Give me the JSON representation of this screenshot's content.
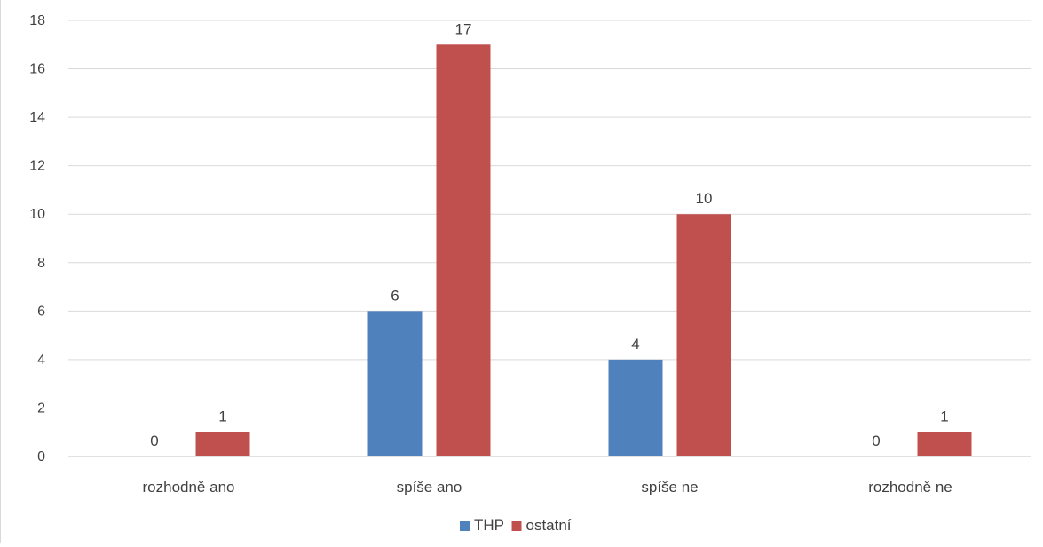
{
  "chart_data": {
    "type": "bar",
    "categories": [
      "rozhodně ano",
      "spíše ano",
      "spíše ne",
      "rozhodně ne"
    ],
    "series": [
      {
        "name": "THP",
        "values": [
          0,
          6,
          4,
          0
        ],
        "color": "#4f81bd"
      },
      {
        "name": "ostatní",
        "values": [
          1,
          17,
          10,
          1
        ],
        "color": "#c0504d"
      }
    ],
    "ylim": [
      0,
      18
    ],
    "yticks": [
      0,
      2,
      4,
      6,
      8,
      10,
      12,
      14,
      16,
      18
    ],
    "grid": true,
    "legend_position": "bottom",
    "data_labels": true
  }
}
